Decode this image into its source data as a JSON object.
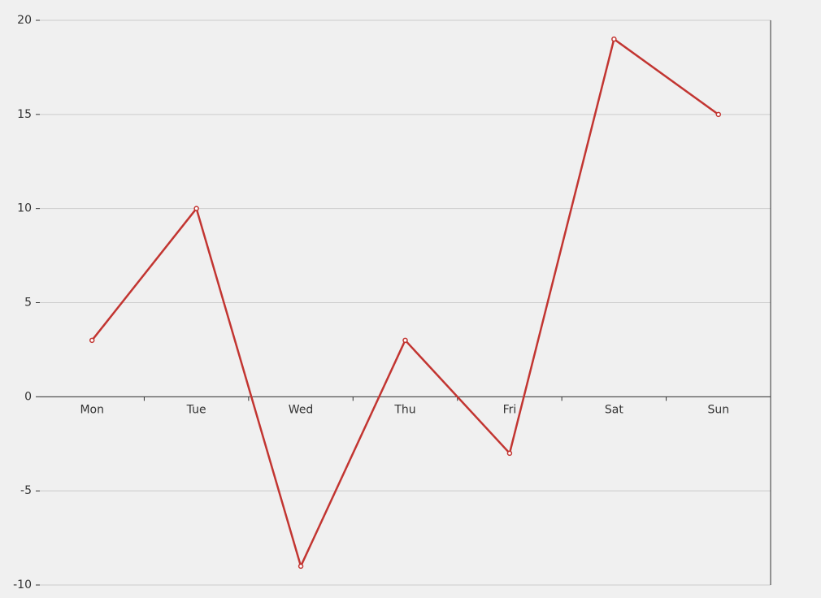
{
  "chart_data": {
    "type": "line",
    "categories": [
      "Mon",
      "Tue",
      "Wed",
      "Thu",
      "Fri",
      "Sat",
      "Sun"
    ],
    "series": [
      {
        "color": "#c23531",
        "values": [
          3,
          10,
          -9,
          3,
          -3,
          19,
          15
        ]
      }
    ],
    "ylim": [
      -10,
      20
    ],
    "yticks": [
      -10,
      -5,
      0,
      5,
      10,
      15,
      20
    ],
    "grid": true
  }
}
